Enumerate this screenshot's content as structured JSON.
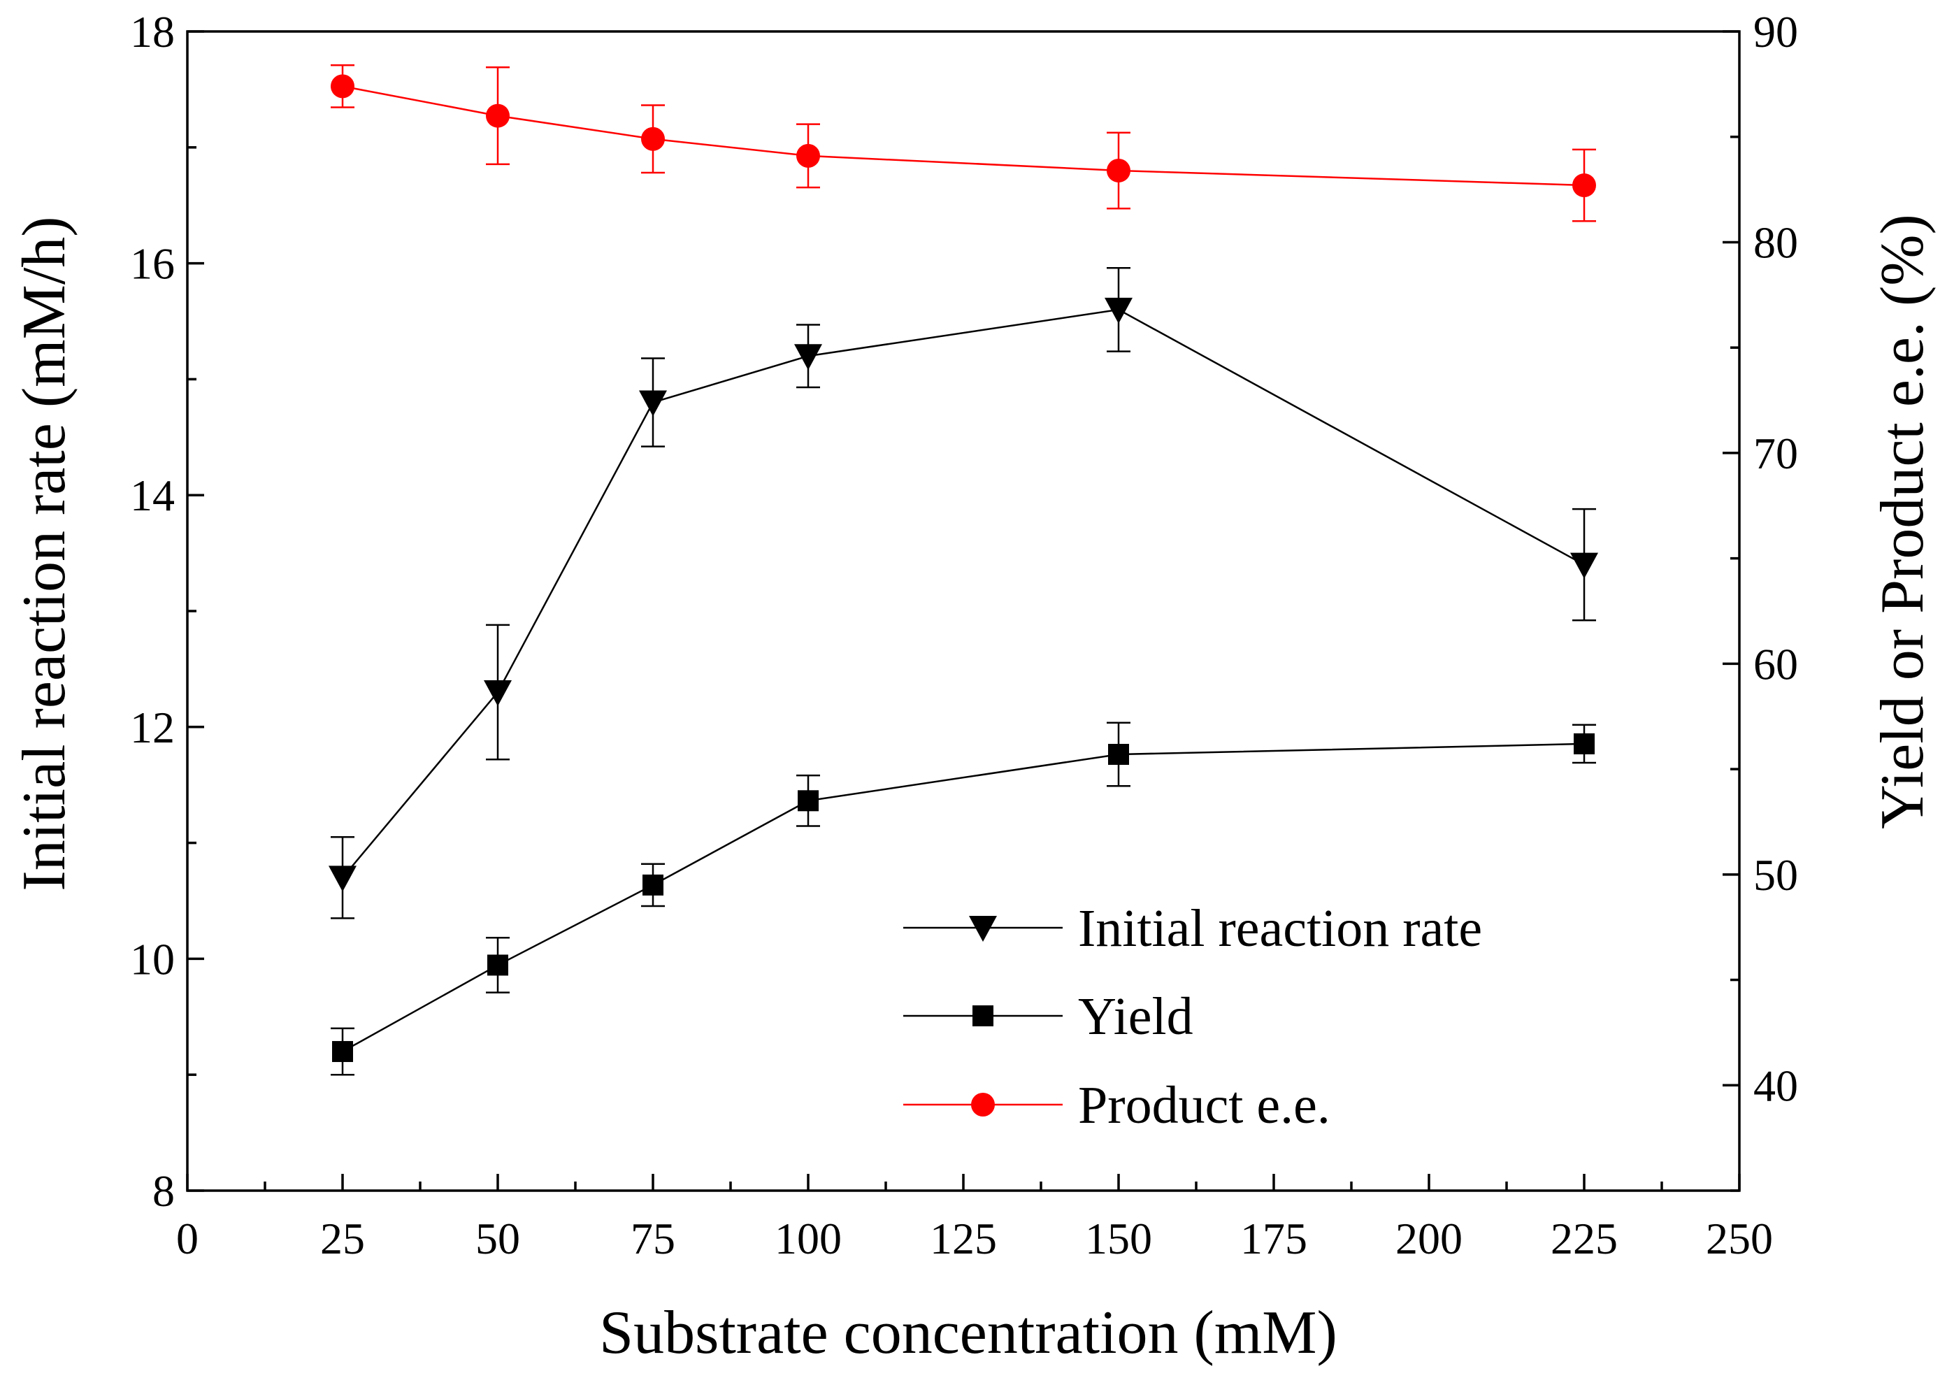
{
  "chart_data": {
    "type": "line",
    "title": "",
    "xlabel": "Substrate concentration (mM)",
    "ylabel": "Initial reaction rate (mM/h)",
    "y2label": "Yield or Product e.e. (%)",
    "x_ticks": [
      "0",
      "25",
      "50",
      "75",
      "100",
      "125",
      "150",
      "175",
      "200",
      "225",
      "250"
    ],
    "y_ticks": [
      "8",
      "10",
      "12",
      "14",
      "16",
      "18"
    ],
    "y2_ticks": [
      "40",
      "50",
      "60",
      "70",
      "80",
      "90"
    ],
    "xlim": [
      0,
      250
    ],
    "ylim": [
      8,
      18
    ],
    "y2lim": [
      35,
      90
    ],
    "legend_position": "lower-right",
    "grid": false,
    "series": [
      {
        "name": "Initial reaction rate",
        "axis": "left",
        "marker": "triangle-down",
        "color": "#000000",
        "x": [
          25,
          50,
          75,
          100,
          150,
          225
        ],
        "y": [
          10.7,
          12.3,
          14.8,
          15.2,
          15.6,
          13.4
        ],
        "err": [
          0.35,
          0.58,
          0.38,
          0.27,
          0.36,
          0.48
        ]
      },
      {
        "name": "Yield",
        "axis": "right",
        "marker": "square",
        "color": "#000000",
        "x": [
          25,
          50,
          75,
          100,
          150,
          225
        ],
        "y": [
          41.6,
          45.7,
          49.5,
          53.5,
          55.7,
          56.2
        ],
        "err": [
          1.1,
          1.3,
          1.0,
          1.2,
          1.5,
          0.9
        ]
      },
      {
        "name": "Product e.e.",
        "axis": "right",
        "marker": "circle",
        "color": "#ff0000",
        "x": [
          25,
          50,
          75,
          100,
          150,
          225
        ],
        "y": [
          87.4,
          86.0,
          84.9,
          84.1,
          83.4,
          82.7
        ],
        "err": [
          1.0,
          2.3,
          1.6,
          1.5,
          1.8,
          1.7
        ]
      }
    ]
  }
}
